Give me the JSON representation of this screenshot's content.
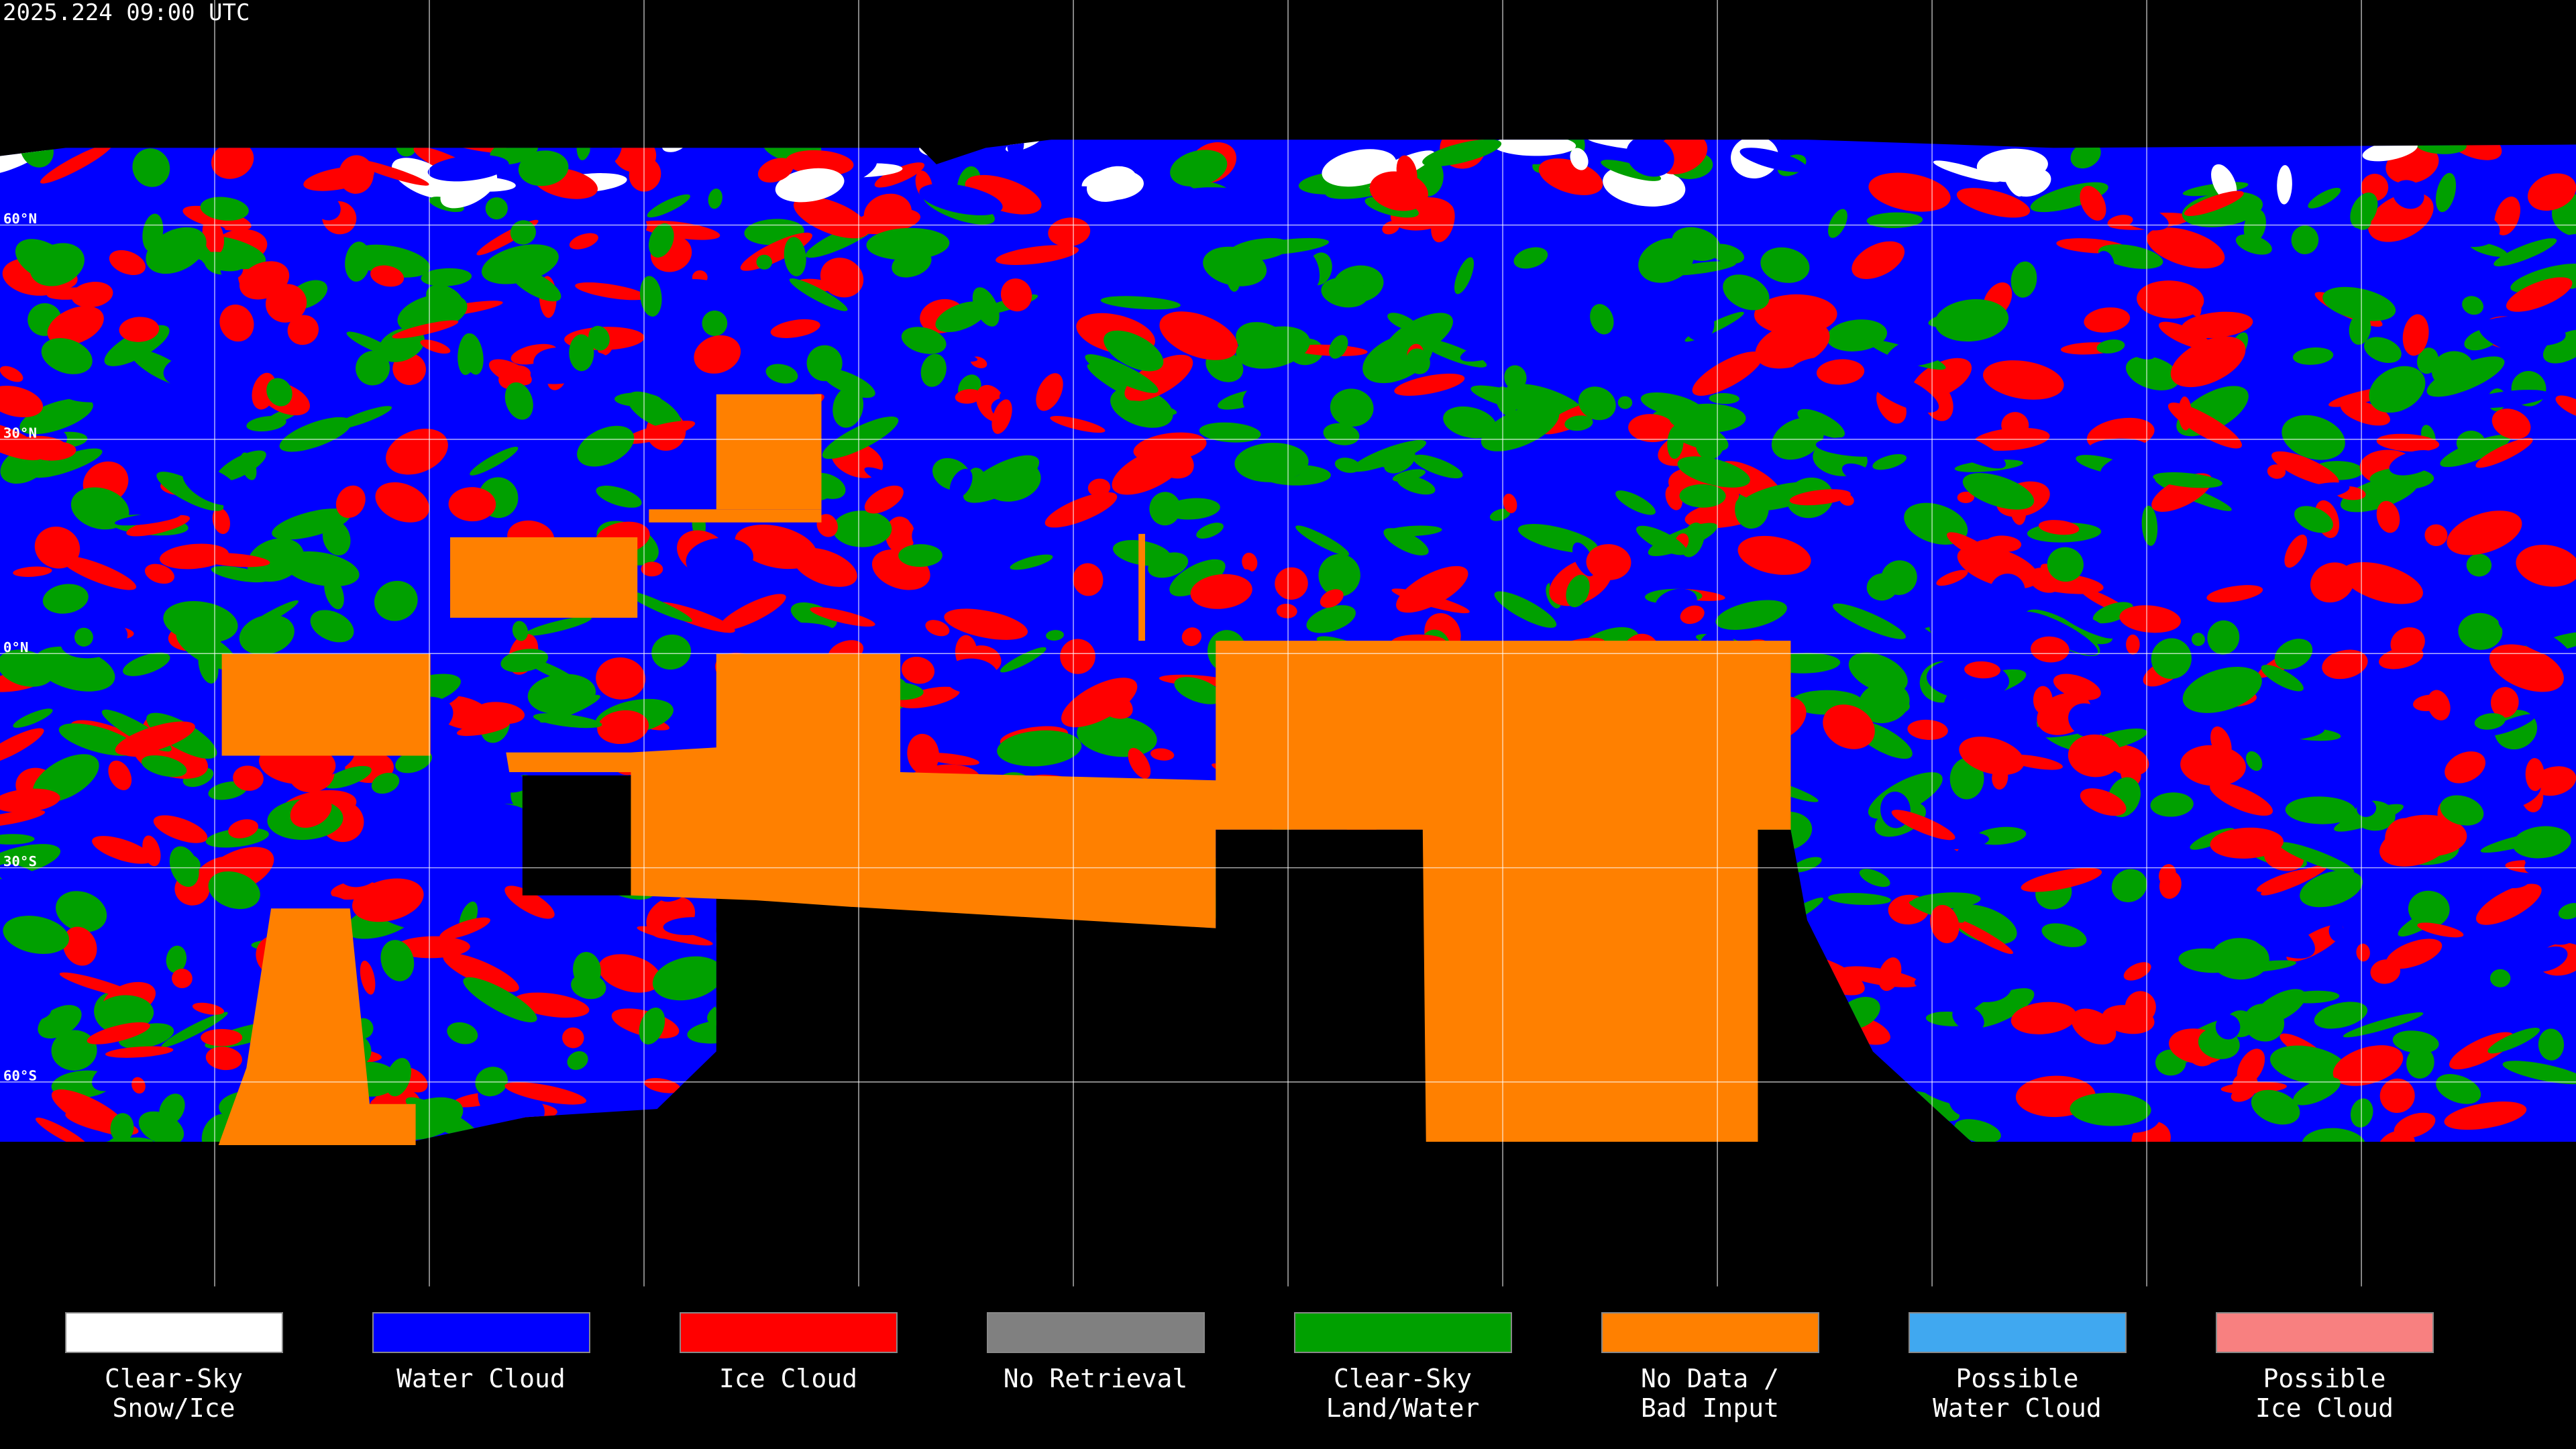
{
  "header": {
    "timestamp": "2025.224 09:00 UTC"
  },
  "map": {
    "lat_labels": [
      "60°N",
      "30°N",
      "0°N",
      "30°S",
      "60°S"
    ]
  },
  "legend": [
    {
      "label_lines": [
        "Clear-Sky",
        "Snow/Ice"
      ],
      "color": "#ffffff"
    },
    {
      "label_lines": [
        "Water Cloud"
      ],
      "color": "#0000ff"
    },
    {
      "label_lines": [
        "Ice Cloud"
      ],
      "color": "#ff0000"
    },
    {
      "label_lines": [
        "No Retrieval"
      ],
      "color": "#808080"
    },
    {
      "label_lines": [
        "Clear-Sky",
        "Land/Water"
      ],
      "color": "#00a000"
    },
    {
      "label_lines": [
        "No Data /",
        "Bad Input"
      ],
      "color": "#ff8000"
    },
    {
      "label_lines": [
        "Possible",
        "Water Cloud"
      ],
      "color": "#40a8f0"
    },
    {
      "label_lines": [
        "Possible",
        "Ice Cloud"
      ],
      "color": "#f88080"
    }
  ]
}
